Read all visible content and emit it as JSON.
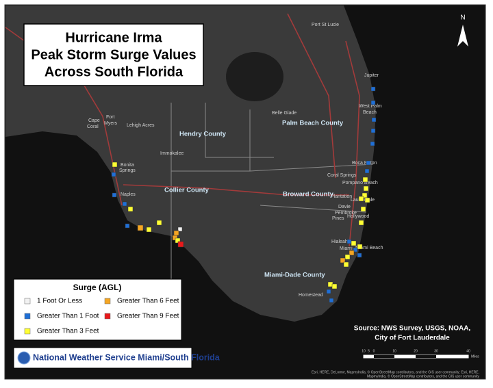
{
  "title": {
    "lines": [
      "Hurricane Irma",
      "Peak Storm Surge Values",
      "Across South Florida"
    ]
  },
  "north": "N",
  "counties": [
    "Hendry County",
    "Palm Beach County",
    "Collier County",
    "Broward County",
    "Miami-Dade County"
  ],
  "cities": [
    "Port St Lucie",
    "Jupiter",
    "West Palm",
    "Beach",
    "Belle Glade",
    "Boca Raton",
    "Coral Springs",
    "Pompano Beach",
    "Lauderdale",
    "Plantation",
    "Davie",
    "Pembroke",
    "Pines",
    "Hollywood",
    "Hialeah",
    "Miami",
    "Miami Beach",
    "Homestead",
    "Cape",
    "Coral",
    "Fort",
    "Myers",
    "Lehigh Acres",
    "Immokalee",
    "Bonita",
    "Springs",
    "Naples"
  ],
  "legend": {
    "title": "Surge (AGL)",
    "items": [
      {
        "label": "1 Foot Or Less",
        "color": "#f2f2f2"
      },
      {
        "label": "Greater Than 1 Foot",
        "color": "#1f6fd6"
      },
      {
        "label": "Greater Than 3 Feet",
        "color": "#ffff33"
      },
      {
        "label": "Greater Than 6 Feet",
        "color": "#f5a623"
      },
      {
        "label": "Greater Than 9 Feet",
        "color": "#e8191b"
      }
    ]
  },
  "source": [
    "Source: NWS Survey, USGS, NOAA,",
    "City of Fort Lauderdale"
  ],
  "footer": "National Weather Service Miami/South Florida",
  "scale": {
    "labels": [
      "10",
      "5",
      "0",
      "10",
      "20",
      "30",
      "40"
    ],
    "unit": "Miles"
  },
  "attribution": [
    "Esri, HERE, DeLorme, MapmyIndia, © OpenStreetMap contributors, and the GIS user community; Esri, HERE,",
    "MapmyIndia, © OpenStreetMap contributors, and the GIS user community"
  ]
}
